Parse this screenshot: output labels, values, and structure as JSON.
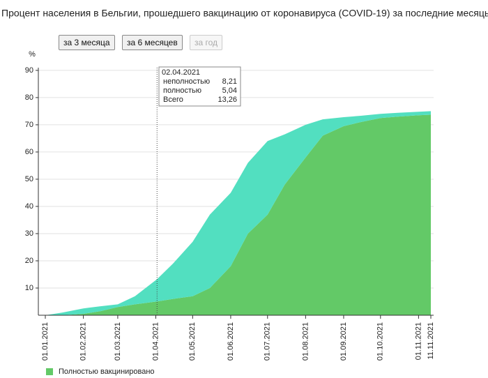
{
  "chart_data": {
    "type": "stacked_area",
    "title": "Процент населения в Бельгии, прошедшего вакцинацию от коронавируса (COVID-19) за последние месяцы:",
    "buttons": [
      "за 3 месяца",
      "за 6 месяцев",
      "за год"
    ],
    "y_label": "%",
    "x": [
      "01.01.2021",
      "15.01.2021",
      "01.02.2021",
      "15.02.2021",
      "01.03.2021",
      "15.03.2021",
      "02.04.2021",
      "15.04.2021",
      "01.05.2021",
      "15.05.2021",
      "01.06.2021",
      "15.06.2021",
      "01.07.2021",
      "15.07.2021",
      "01.08.2021",
      "15.08.2021",
      "01.09.2021",
      "15.09.2021",
      "01.10.2021",
      "15.10.2021",
      "01.11.2021",
      "11.11.2021"
    ],
    "series": [
      {
        "name": "Полностью вакцинировано",
        "color": "#63c967",
        "values": [
          0,
          0,
          0.5,
          1.5,
          3,
          4,
          5.04,
          6,
          7,
          10,
          18,
          30,
          37,
          48,
          58,
          66,
          69.5,
          71,
          72.5,
          73,
          73.5,
          73.7
        ]
      },
      {
        "color": "#52dfc0",
        "values": [
          0,
          1,
          2,
          1.8,
          1,
          3,
          8.21,
          13,
          20,
          27,
          27,
          26,
          27,
          18.5,
          12,
          6,
          3.3,
          2.3,
          1.5,
          1.4,
          1.3,
          1.3
        ]
      }
    ],
    "xlim": [
      "01.01.2021",
      "11.11.2021"
    ],
    "xticks": [
      "01.01.2021",
      "01.02.2021",
      "01.03.2021",
      "01.04.2021",
      "01.05.2021",
      "01.06.2021",
      "01.07.2021",
      "01.08.2021",
      "01.09.2021",
      "01.10.2021",
      "01.11.2021",
      "11.11.2021"
    ],
    "ylim": [
      0,
      91
    ],
    "yticks": [
      10,
      20,
      30,
      40,
      50,
      60,
      70,
      80,
      90
    ],
    "grid": true,
    "tooltip": {
      "date": "02.04.2021",
      "rows": [
        {
          "label": "неполностью",
          "value": "8,21"
        },
        {
          "label": "полностью",
          "value": "5,04"
        },
        {
          "label": "Всего",
          "value": "13,26"
        }
      ]
    }
  }
}
